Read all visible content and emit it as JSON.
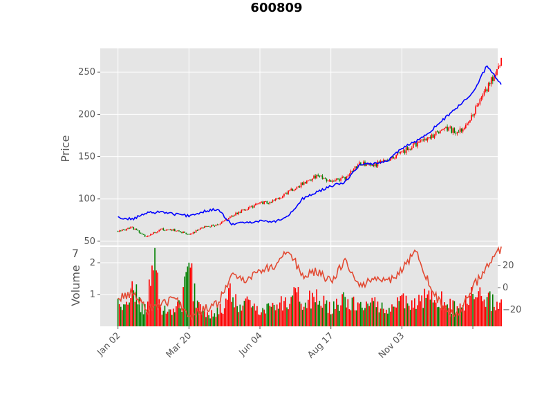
{
  "chart_data": {
    "type": "candlestick",
    "title": "600809",
    "price_panel": {
      "ylabel": "Price",
      "ylim": [
        45,
        278
      ],
      "yticks": [
        50,
        100,
        150,
        200,
        250
      ],
      "ma_color": "#0000ff",
      "up_color": "#ff0000",
      "down_color": "#008000",
      "close_approx": [
        [
          0,
          62
        ],
        [
          20,
          66
        ],
        [
          40,
          55
        ],
        [
          60,
          64
        ],
        [
          80,
          63
        ],
        [
          100,
          58
        ],
        [
          120,
          66
        ],
        [
          140,
          70
        ],
        [
          160,
          80
        ],
        [
          180,
          88
        ],
        [
          200,
          95
        ],
        [
          220,
          97
        ],
        [
          240,
          108
        ],
        [
          260,
          118
        ],
        [
          280,
          128
        ],
        [
          300,
          120
        ],
        [
          320,
          125
        ],
        [
          340,
          142
        ],
        [
          360,
          140
        ],
        [
          380,
          145
        ],
        [
          400,
          155
        ],
        [
          420,
          165
        ],
        [
          440,
          172
        ],
        [
          460,
          185
        ],
        [
          480,
          178
        ],
        [
          500,
          200
        ],
        [
          520,
          230
        ],
        [
          540,
          265
        ]
      ],
      "ma_approx": [
        [
          0,
          78
        ],
        [
          20,
          76
        ],
        [
          40,
          83
        ],
        [
          60,
          85
        ],
        [
          80,
          82
        ],
        [
          100,
          80
        ],
        [
          120,
          85
        ],
        [
          140,
          88
        ],
        [
          160,
          70
        ],
        [
          180,
          72
        ],
        [
          200,
          74
        ],
        [
          220,
          73
        ],
        [
          240,
          80
        ],
        [
          260,
          100
        ],
        [
          280,
          108
        ],
        [
          300,
          115
        ],
        [
          320,
          120
        ],
        [
          340,
          140
        ],
        [
          360,
          142
        ],
        [
          380,
          145
        ],
        [
          400,
          160
        ],
        [
          420,
          168
        ],
        [
          440,
          180
        ],
        [
          460,
          195
        ],
        [
          480,
          210
        ],
        [
          500,
          225
        ],
        [
          520,
          258
        ],
        [
          540,
          235
        ]
      ]
    },
    "volume_panel": {
      "ylabel": "Volume",
      "exponent": "7",
      "ylim": [
        0,
        2.5
      ],
      "yticks": [
        1,
        2
      ],
      "secondary_yticks": [
        20,
        0,
        -20
      ],
      "secondary_ylim": [
        -35,
        37
      ],
      "line_color": "#e24a33",
      "volume_approx": [
        [
          0,
          0.9
        ],
        [
          10,
          0.6
        ],
        [
          20,
          1.5
        ],
        [
          30,
          0.8
        ],
        [
          40,
          0.5
        ],
        [
          50,
          2.35
        ],
        [
          60,
          0.7
        ],
        [
          70,
          0.5
        ],
        [
          80,
          0.6
        ],
        [
          90,
          0.8
        ],
        [
          100,
          2.1
        ],
        [
          110,
          0.9
        ],
        [
          120,
          0.6
        ],
        [
          130,
          0.4
        ],
        [
          140,
          0.5
        ],
        [
          150,
          0.7
        ],
        [
          160,
          1.2
        ],
        [
          170,
          0.6
        ],
        [
          180,
          0.8
        ],
        [
          200,
          0.6
        ],
        [
          220,
          0.7
        ],
        [
          240,
          0.9
        ],
        [
          250,
          1.4
        ],
        [
          260,
          0.8
        ],
        [
          280,
          1.0
        ],
        [
          300,
          0.6
        ],
        [
          320,
          0.9
        ],
        [
          340,
          0.7
        ],
        [
          360,
          0.8
        ],
        [
          380,
          0.6
        ],
        [
          400,
          0.9
        ],
        [
          420,
          0.7
        ],
        [
          440,
          1.2
        ],
        [
          460,
          0.8
        ],
        [
          480,
          0.6
        ],
        [
          500,
          1.1
        ],
        [
          520,
          0.9
        ],
        [
          540,
          0.8
        ]
      ],
      "osc_approx": [
        [
          0,
          -10
        ],
        [
          20,
          -5
        ],
        [
          40,
          -20
        ],
        [
          60,
          -15
        ],
        [
          80,
          -10
        ],
        [
          100,
          -25
        ],
        [
          120,
          -20
        ],
        [
          140,
          -15
        ],
        [
          160,
          10
        ],
        [
          180,
          8
        ],
        [
          200,
          15
        ],
        [
          220,
          20
        ],
        [
          240,
          35
        ],
        [
          260,
          10
        ],
        [
          280,
          15
        ],
        [
          300,
          5
        ],
        [
          320,
          25
        ],
        [
          340,
          0
        ],
        [
          360,
          10
        ],
        [
          380,
          5
        ],
        [
          400,
          15
        ],
        [
          420,
          35
        ],
        [
          440,
          0
        ],
        [
          460,
          -20
        ],
        [
          480,
          -25
        ],
        [
          500,
          0
        ],
        [
          520,
          20
        ],
        [
          540,
          35
        ]
      ]
    },
    "x_axis": {
      "tick_labels": [
        "Jan 02",
        "Mar 20",
        "Jun 04",
        "Aug 17",
        "Nov 03"
      ],
      "tick_positions": [
        0,
        100,
        200,
        300,
        400
      ],
      "xlim": [
        -25,
        535
      ]
    }
  }
}
